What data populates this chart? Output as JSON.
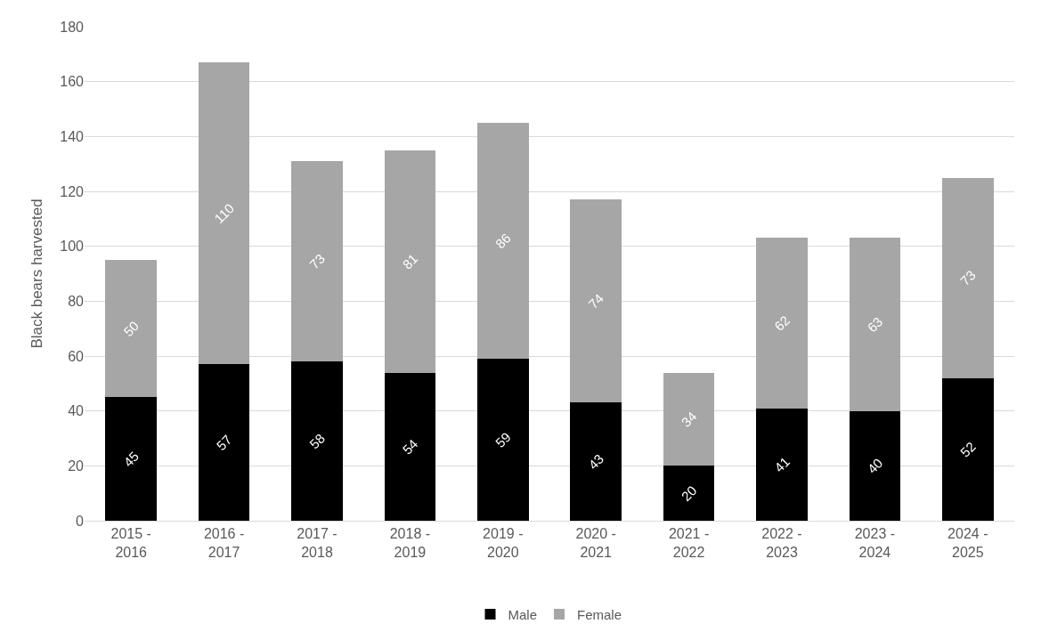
{
  "chart_data": {
    "type": "bar",
    "stacked": true,
    "ylabel": "Black bears harvested",
    "categories": [
      "2015 - 2016",
      "2016 - 2017",
      "2017 - 2018",
      "2018 - 2019",
      "2019 - 2020",
      "2020 - 2021",
      "2021 - 2022",
      "2022 - 2023",
      "2023 - 2024",
      "2024 - 2025"
    ],
    "series": [
      {
        "name": "Male",
        "color": "#000000",
        "values": [
          45,
          57,
          58,
          54,
          59,
          43,
          20,
          41,
          40,
          52
        ]
      },
      {
        "name": "Female",
        "color": "#a6a6a6",
        "values": [
          50,
          110,
          73,
          81,
          86,
          74,
          34,
          62,
          63,
          73
        ]
      }
    ],
    "ylim": [
      0,
      180
    ],
    "yticks": [
      0,
      20,
      40,
      60,
      80,
      100,
      120,
      140,
      160,
      180
    ],
    "grid": "y",
    "legend": "bottom",
    "data_labels": true
  }
}
